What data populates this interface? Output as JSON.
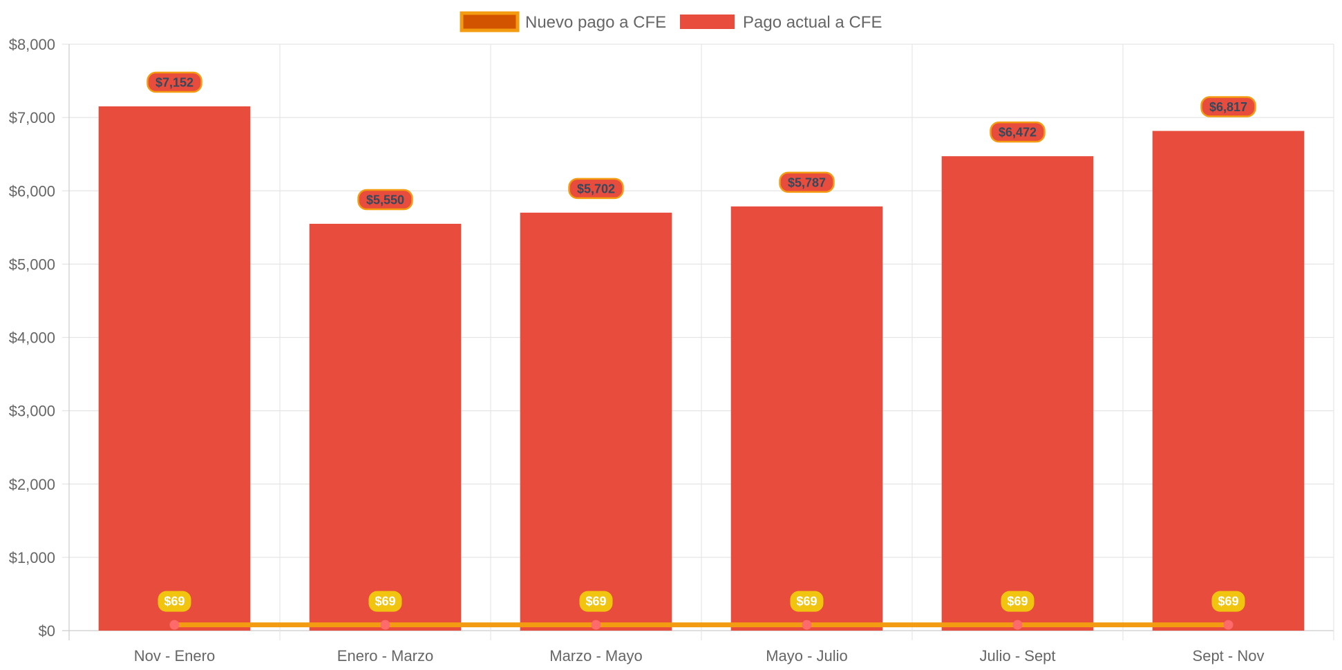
{
  "chart_data": {
    "type": "bar",
    "categories": [
      "Nov - Enero",
      "Enero - Marzo",
      "Marzo - Mayo",
      "Mayo - Julio",
      "Julio - Sept",
      "Sept - Nov"
    ],
    "series": [
      {
        "name": "Nuevo pago a CFE",
        "type": "line",
        "values": [
          69,
          69,
          69,
          69,
          69,
          69
        ],
        "labels": [
          "$69",
          "$69",
          "$69",
          "$69",
          "$69",
          "$69"
        ],
        "color": "#f39c12",
        "fill": "#d35400",
        "point_color": "#ff6b6b",
        "label_color": "#f1c40f"
      },
      {
        "name": "Pago actual a CFE",
        "type": "bar",
        "values": [
          7152,
          5550,
          5702,
          5787,
          6472,
          6817
        ],
        "labels": [
          "$7,152",
          "$5,550",
          "$5,702",
          "$5,787",
          "$6,472",
          "$6,817"
        ],
        "color": "#e74c3c",
        "label_border": "#f39c12",
        "label_text_color": "#34495e"
      }
    ],
    "y_ticks": [
      "$0",
      "$1,000",
      "$2,000",
      "$3,000",
      "$4,000",
      "$5,000",
      "$6,000",
      "$7,000",
      "$8,000"
    ],
    "ylim": [
      0,
      8000
    ],
    "grid": true,
    "legend_position": "top-center"
  }
}
